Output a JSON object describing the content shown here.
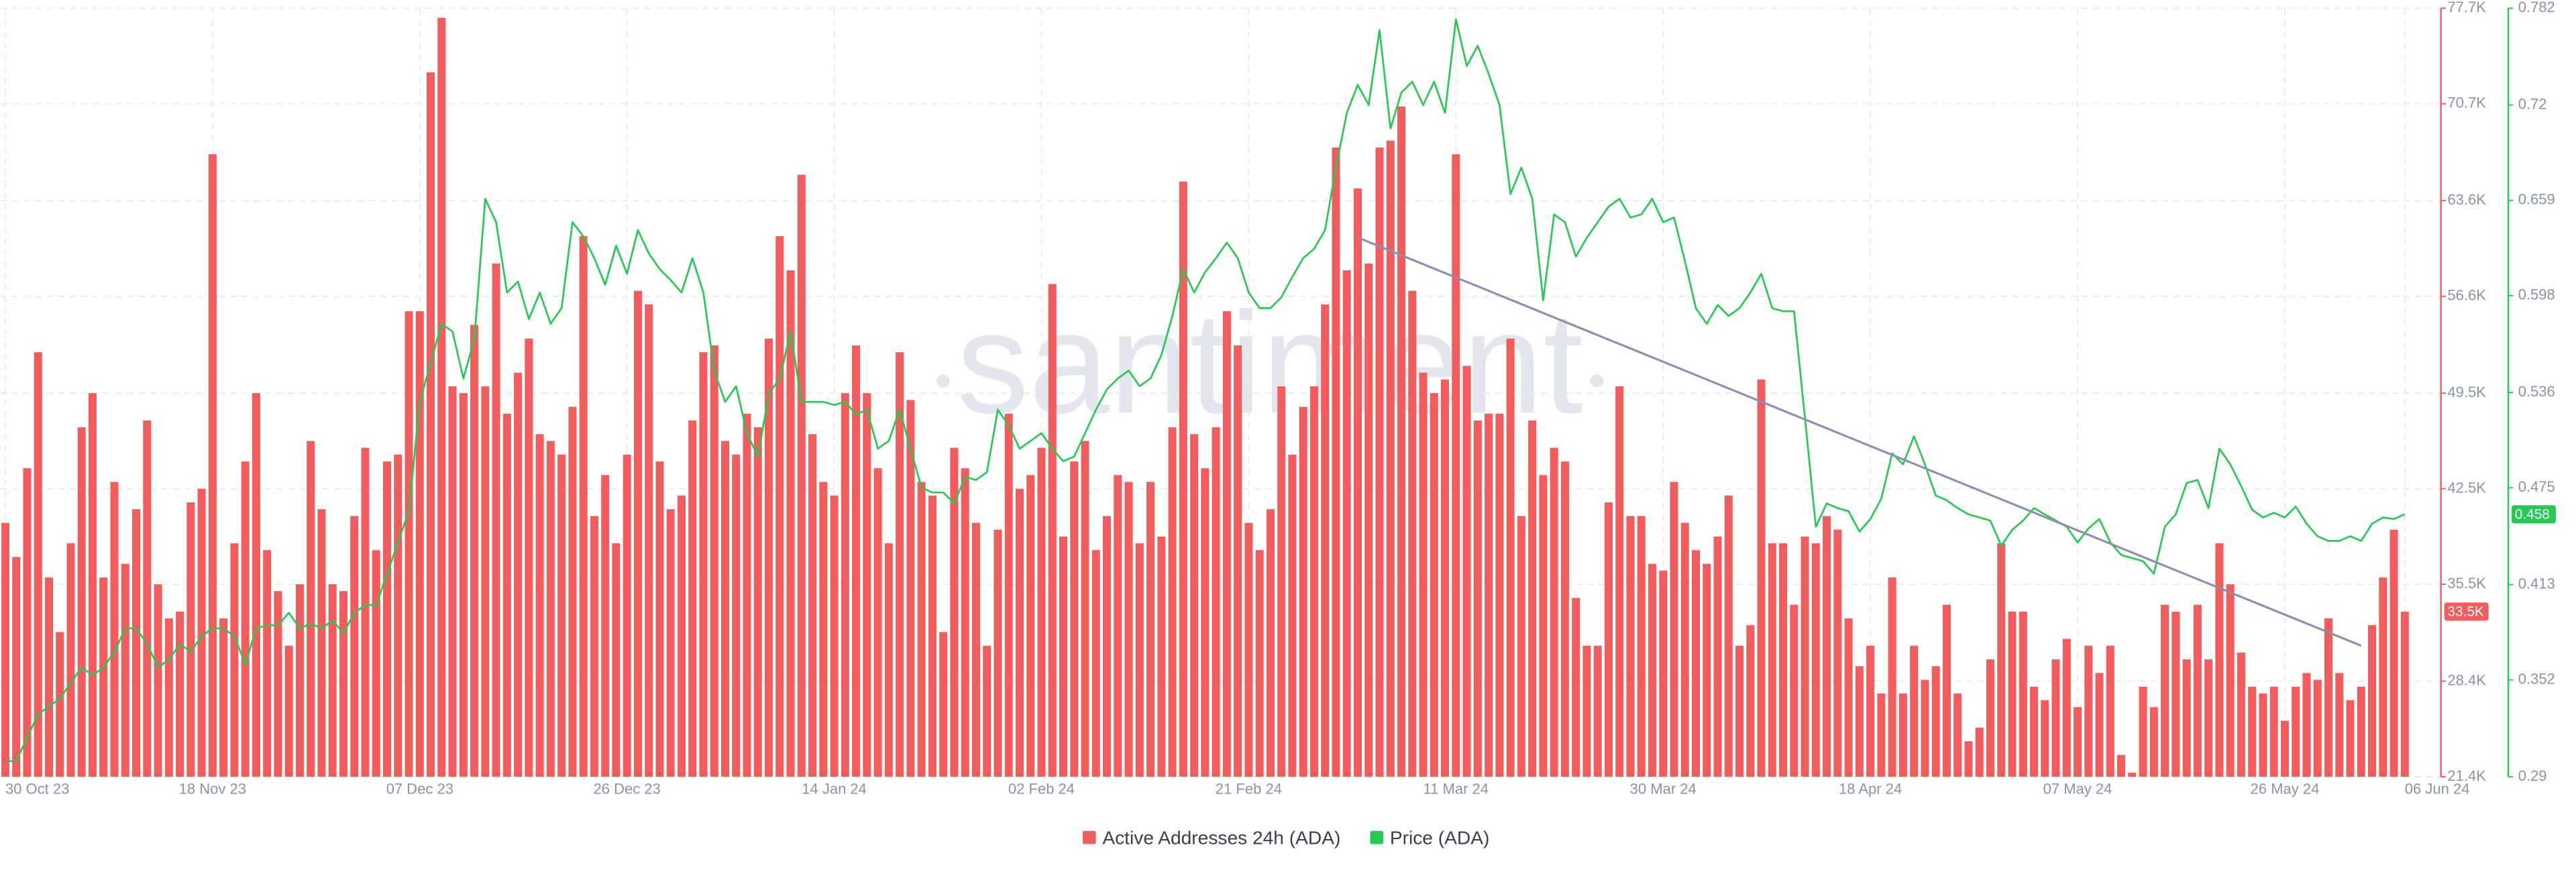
{
  "chart_data": {
    "type": "bar",
    "watermark": "santiment",
    "x": [
      "2023-10-30",
      "2023-10-31",
      "2023-11-01",
      "2023-11-02",
      "2023-11-03",
      "2023-11-04",
      "2023-11-05",
      "2023-11-06",
      "2023-11-07",
      "2023-11-08",
      "2023-11-09",
      "2023-11-10",
      "2023-11-11",
      "2023-11-12",
      "2023-11-13",
      "2023-11-14",
      "2023-11-15",
      "2023-11-16",
      "2023-11-17",
      "2023-11-18",
      "2023-11-19",
      "2023-11-20",
      "2023-11-21",
      "2023-11-22",
      "2023-11-23",
      "2023-11-24",
      "2023-11-25",
      "2023-11-26",
      "2023-11-27",
      "2023-11-28",
      "2023-11-29",
      "2023-11-30",
      "2023-12-01",
      "2023-12-02",
      "2023-12-03",
      "2023-12-04",
      "2023-12-05",
      "2023-12-06",
      "2023-12-07",
      "2023-12-08",
      "2023-12-09",
      "2023-12-10",
      "2023-12-11",
      "2023-12-12",
      "2023-12-13",
      "2023-12-14",
      "2023-12-15",
      "2023-12-16",
      "2023-12-17",
      "2023-12-18",
      "2023-12-19",
      "2023-12-20",
      "2023-12-21",
      "2023-12-22",
      "2023-12-23",
      "2023-12-24",
      "2023-12-25",
      "2023-12-26",
      "2023-12-27",
      "2023-12-28",
      "2023-12-29",
      "2023-12-30",
      "2023-12-31",
      "2024-01-01",
      "2024-01-02",
      "2024-01-03",
      "2024-01-04",
      "2024-01-05",
      "2024-01-06",
      "2024-01-07",
      "2024-01-08",
      "2024-01-09",
      "2024-01-10",
      "2024-01-11",
      "2024-01-12",
      "2024-01-13",
      "2024-01-14",
      "2024-01-15",
      "2024-01-16",
      "2024-01-17",
      "2024-01-18",
      "2024-01-19",
      "2024-01-20",
      "2024-01-21",
      "2024-01-22",
      "2024-01-23",
      "2024-01-24",
      "2024-01-25",
      "2024-01-26",
      "2024-01-27",
      "2024-01-28",
      "2024-01-29",
      "2024-01-30",
      "2024-01-31",
      "2024-02-01",
      "2024-02-02",
      "2024-02-03",
      "2024-02-04",
      "2024-02-05",
      "2024-02-06",
      "2024-02-07",
      "2024-02-08",
      "2024-02-09",
      "2024-02-10",
      "2024-02-11",
      "2024-02-12",
      "2024-02-13",
      "2024-02-14",
      "2024-02-15",
      "2024-02-16",
      "2024-02-17",
      "2024-02-18",
      "2024-02-19",
      "2024-02-20",
      "2024-02-21",
      "2024-02-22",
      "2024-02-23",
      "2024-02-24",
      "2024-02-25",
      "2024-02-26",
      "2024-02-27",
      "2024-02-28",
      "2024-02-29",
      "2024-03-01",
      "2024-03-02",
      "2024-03-03",
      "2024-03-04",
      "2024-03-05",
      "2024-03-06",
      "2024-03-07",
      "2024-03-08",
      "2024-03-09",
      "2024-03-10",
      "2024-03-11",
      "2024-03-12",
      "2024-03-13",
      "2024-03-14",
      "2024-03-15",
      "2024-03-16",
      "2024-03-17",
      "2024-03-18",
      "2024-03-19",
      "2024-03-20",
      "2024-03-21",
      "2024-03-22",
      "2024-03-23",
      "2024-03-24",
      "2024-03-25",
      "2024-03-26",
      "2024-03-27",
      "2024-03-28",
      "2024-03-29",
      "2024-03-30",
      "2024-03-31",
      "2024-04-01",
      "2024-04-02",
      "2024-04-03",
      "2024-04-04",
      "2024-04-05",
      "2024-04-06",
      "2024-04-07",
      "2024-04-08",
      "2024-04-09",
      "2024-04-10",
      "2024-04-11",
      "2024-04-12",
      "2024-04-13",
      "2024-04-14",
      "2024-04-15",
      "2024-04-16",
      "2024-04-17",
      "2024-04-18",
      "2024-04-19",
      "2024-04-20",
      "2024-04-21",
      "2024-04-22",
      "2024-04-23",
      "2024-04-24",
      "2024-04-25",
      "2024-04-26",
      "2024-04-27",
      "2024-04-28",
      "2024-04-29",
      "2024-04-30",
      "2024-05-01",
      "2024-05-02",
      "2024-05-03",
      "2024-05-04",
      "2024-05-05",
      "2024-05-06",
      "2024-05-07",
      "2024-05-08",
      "2024-05-09",
      "2024-05-10",
      "2024-05-11",
      "2024-05-12",
      "2024-05-13",
      "2024-05-14",
      "2024-05-15",
      "2024-05-16",
      "2024-05-17",
      "2024-05-18",
      "2024-05-19",
      "2024-05-20",
      "2024-05-21",
      "2024-05-22",
      "2024-05-23",
      "2024-05-24",
      "2024-05-25",
      "2024-05-26",
      "2024-05-27",
      "2024-05-28",
      "2024-05-29",
      "2024-05-30",
      "2024-05-31",
      "2024-06-01",
      "2024-06-02",
      "2024-06-03",
      "2024-06-04",
      "2024-06-05",
      "2024-06-06"
    ],
    "xlim": [
      "2023-10-30",
      "2024-06-06"
    ],
    "xticks": [
      {
        "value": "2023-10-30",
        "label": "30 Oct 23"
      },
      {
        "value": "2023-11-18",
        "label": "18 Nov 23"
      },
      {
        "value": "2023-12-07",
        "label": "07 Dec 23"
      },
      {
        "value": "2023-12-26",
        "label": "26 Dec 23"
      },
      {
        "value": "2024-01-14",
        "label": "14 Jan 24"
      },
      {
        "value": "2024-02-02",
        "label": "02 Feb 24"
      },
      {
        "value": "2024-02-21",
        "label": "21 Feb 24"
      },
      {
        "value": "2024-03-11",
        "label": "11 Mar 24"
      },
      {
        "value": "2024-03-30",
        "label": "30 Mar 24"
      },
      {
        "value": "2024-04-18",
        "label": "18 Apr 24"
      },
      {
        "value": "2024-05-07",
        "label": "07 May 24"
      },
      {
        "value": "2024-05-26",
        "label": "26 May 24"
      },
      {
        "value": "2024-06-06",
        "label": "06 Jun 24"
      }
    ],
    "ylim": [
      21400,
      77700
    ],
    "yticks": [
      {
        "value": 21400,
        "label": "21.4K"
      },
      {
        "value": 28400,
        "label": "28.4K"
      },
      {
        "value": 35500,
        "label": "35.5K"
      },
      {
        "value": 42500,
        "label": "42.5K"
      },
      {
        "value": 49500,
        "label": "49.5K"
      },
      {
        "value": 56600,
        "label": "56.6K"
      },
      {
        "value": 63600,
        "label": "63.6K"
      },
      {
        "value": 70700,
        "label": "70.7K"
      },
      {
        "value": 77700,
        "label": "77.7K"
      }
    ],
    "y2lim": [
      0.29,
      0.782
    ],
    "y2ticks": [
      0.29,
      0.352,
      0.413,
      0.475,
      0.536,
      0.598,
      0.659,
      0.72,
      0.782
    ],
    "grid": true,
    "legend": "bottom",
    "series": [
      {
        "name": "Active Addresses 24h (ADA)",
        "type": "bar",
        "color": "#f25c5c",
        "last_label": "33.5K",
        "values": [
          40000,
          37500,
          44000,
          52500,
          36000,
          32000,
          38500,
          47000,
          49500,
          36000,
          43000,
          37000,
          41000,
          47500,
          35500,
          33000,
          33500,
          41500,
          42500,
          67000,
          33000,
          38500,
          44500,
          49500,
          38000,
          35000,
          31000,
          35500,
          46000,
          41000,
          35500,
          35000,
          40500,
          45500,
          38000,
          44500,
          45000,
          55500,
          55500,
          73000,
          77000,
          50000,
          49500,
          54500,
          50000,
          59000,
          48000,
          51000,
          53500,
          46500,
          46000,
          45000,
          48500,
          61000,
          40500,
          43500,
          38500,
          45000,
          57000,
          56000,
          44500,
          41000,
          42000,
          47500,
          52500,
          53000,
          46000,
          45000,
          48000,
          47000,
          53500,
          61000,
          58500,
          65500,
          46500,
          43000,
          42000,
          49500,
          53000,
          49500,
          44000,
          38500,
          52500,
          49000,
          43000,
          42000,
          32000,
          45500,
          44000,
          40000,
          31000,
          39500,
          48000,
          42500,
          43500,
          45500,
          57500,
          39000,
          44500,
          46000,
          38000,
          40500,
          43500,
          43000,
          38500,
          43000,
          39000,
          47000,
          65000,
          46500,
          44000,
          47000,
          55500,
          53000,
          40000,
          38000,
          41000,
          50000,
          45000,
          48500,
          50000,
          56000,
          67500,
          58500,
          64500,
          59000,
          67500,
          68000,
          70500,
          57000,
          51000,
          49500,
          50500,
          67000,
          51500,
          47500,
          48000,
          48000,
          53500,
          40500,
          47500,
          43500,
          45500,
          44500,
          34500,
          31000,
          31000,
          41500,
          50000,
          40500,
          40500,
          37000,
          36500,
          43000,
          40000,
          38000,
          37000,
          39000,
          42000,
          31000,
          32500,
          50500,
          38500,
          38500,
          34000,
          39000,
          38500,
          40500,
          39500,
          33000,
          29500,
          31000,
          27500,
          36000,
          27500,
          31000,
          28500,
          29500,
          34000,
          27500,
          24000,
          25000,
          30000,
          38500,
          33500,
          33500,
          28000,
          27000,
          30000,
          31500,
          26500,
          31000,
          29000,
          31000,
          23000,
          21700,
          28000,
          26500,
          34000,
          33500,
          30000,
          34000,
          30000,
          38500,
          35500,
          30500,
          28000,
          27500,
          28000,
          25500,
          28000,
          29000,
          28500,
          33000,
          29000,
          27000,
          28000,
          32500,
          36000,
          39500,
          33500
        ]
      },
      {
        "name": "Price (ADA)",
        "type": "line",
        "axis": "y2",
        "color": "#26c953",
        "values": [
          0.3,
          0.3,
          0.315,
          0.33,
          0.335,
          0.34,
          0.35,
          0.36,
          0.355,
          0.36,
          0.37,
          0.385,
          0.385,
          0.375,
          0.36,
          0.365,
          0.375,
          0.37,
          0.38,
          0.385,
          0.385,
          0.38,
          0.362,
          0.385,
          0.387,
          0.387,
          0.395,
          0.385,
          0.388,
          0.385,
          0.39,
          0.382,
          0.395,
          0.4,
          0.4,
          0.42,
          0.44,
          0.46,
          0.53,
          0.555,
          0.58,
          0.575,
          0.545,
          0.57,
          0.66,
          0.645,
          0.6,
          0.607,
          0.583,
          0.6,
          0.58,
          0.59,
          0.645,
          0.636,
          0.622,
          0.605,
          0.63,
          0.612,
          0.64,
          0.625,
          0.615,
          0.608,
          0.6,
          0.622,
          0.6,
          0.55,
          0.53,
          0.54,
          0.51,
          0.495,
          0.535,
          0.545,
          0.575,
          0.53,
          0.53,
          0.53,
          0.528,
          0.53,
          0.522,
          0.525,
          0.5,
          0.505,
          0.525,
          0.5,
          0.475,
          0.472,
          0.472,
          0.465,
          0.482,
          0.48,
          0.485,
          0.525,
          0.515,
          0.5,
          0.505,
          0.51,
          0.5,
          0.492,
          0.495,
          0.51,
          0.525,
          0.538,
          0.545,
          0.55,
          0.54,
          0.545,
          0.56,
          0.585,
          0.615,
          0.6,
          0.613,
          0.622,
          0.632,
          0.622,
          0.6,
          0.59,
          0.59,
          0.597,
          0.61,
          0.622,
          0.628,
          0.64,
          0.68,
          0.715,
          0.733,
          0.72,
          0.768,
          0.705,
          0.728,
          0.735,
          0.72,
          0.735,
          0.715,
          0.775,
          0.745,
          0.758,
          0.74,
          0.72,
          0.663,
          0.68,
          0.66,
          0.595,
          0.65,
          0.645,
          0.623,
          0.635,
          0.645,
          0.655,
          0.66,
          0.648,
          0.65,
          0.66,
          0.645,
          0.648,
          0.62,
          0.59,
          0.58,
          0.592,
          0.585,
          0.59,
          0.6,
          0.612,
          0.59,
          0.588,
          0.588,
          0.52,
          0.45,
          0.465,
          0.462,
          0.46,
          0.447,
          0.455,
          0.468,
          0.497,
          0.49,
          0.508,
          0.49,
          0.47,
          0.467,
          0.462,
          0.458,
          0.456,
          0.454,
          0.438,
          0.448,
          0.454,
          0.462,
          0.458,
          0.454,
          0.45,
          0.44,
          0.449,
          0.455,
          0.44,
          0.432,
          0.43,
          0.428,
          0.42,
          0.45,
          0.458,
          0.478,
          0.48,
          0.462,
          0.5,
          0.49,
          0.476,
          0.461,
          0.456,
          0.459,
          0.456,
          0.463,
          0.452,
          0.444,
          0.441,
          0.441,
          0.444,
          0.441,
          0.452,
          0.456,
          0.455,
          0.458
        ]
      }
    ],
    "trend_line": {
      "x": [
        "2024-03-02",
        "2024-06-02"
      ],
      "values": [
        60900,
        31000
      ],
      "color": "#8c8fb0"
    }
  }
}
